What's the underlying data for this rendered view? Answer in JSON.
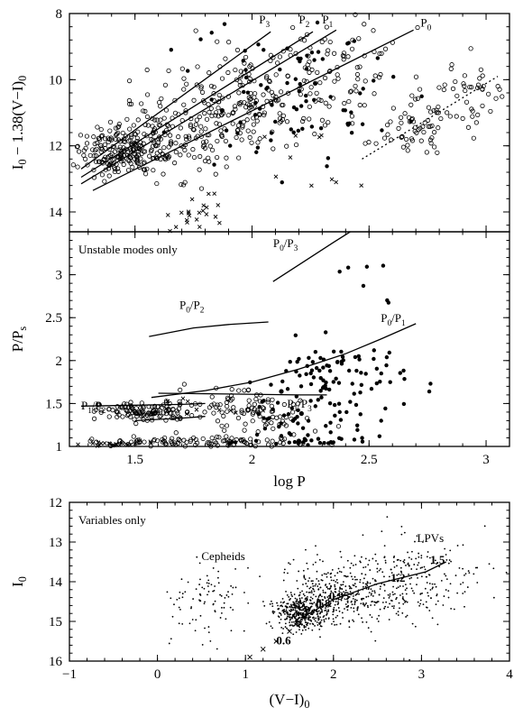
{
  "chart_data": [
    {
      "type": "scatter",
      "panel": "top",
      "xlabel": "",
      "ylabel": "I0 − 1.38(V−I)0",
      "ylabel_parts": {
        "main": "I",
        "sub1": "0",
        "mid": " − 1.38(V−I)",
        "sub2": "0"
      },
      "xlim": [
        1.22,
        3.1
      ],
      "ylim": [
        8,
        14.6
      ],
      "y_inverted": true,
      "yticks": [
        8,
        10,
        12,
        14
      ],
      "ytick_labels": [
        "8",
        "10",
        "12",
        "14"
      ],
      "xticks": [
        1.5,
        2,
        2.5,
        3
      ],
      "labels": [
        {
          "text": "P3",
          "main": "P",
          "sub": "3",
          "x": 2.03,
          "y": 8.3
        },
        {
          "text": "P2",
          "main": "P",
          "sub": "2",
          "x": 2.2,
          "y": 8.3
        },
        {
          "text": "P1",
          "main": "P",
          "sub": "1",
          "x": 2.3,
          "y": 8.3
        },
        {
          "text": "P0",
          "main": "P",
          "sub": "0",
          "x": 2.72,
          "y": 8.4
        }
      ],
      "series": [
        {
          "style": "line",
          "points": [
            [
              1.27,
              12.7
            ],
            [
              2.08,
              8.55
            ]
          ]
        },
        {
          "style": "line",
          "points": [
            [
              1.27,
              12.95
            ],
            [
              2.26,
              8.55
            ]
          ]
        },
        {
          "style": "line",
          "points": [
            [
              1.27,
              13.15
            ],
            [
              2.36,
              8.5
            ]
          ]
        },
        {
          "style": "line",
          "points": [
            [
              1.32,
              13.35
            ],
            [
              2.69,
              8.5
            ]
          ]
        },
        {
          "style": "dotted",
          "points": [
            [
              2.47,
              12.4
            ],
            [
              3.05,
              9.9
            ]
          ]
        },
        {
          "style": "open-circles",
          "clusters": [
            {
              "cx": 1.42,
              "cy": 12.2,
              "sx": 0.08,
              "sy": 0.35,
              "n": 150
            },
            {
              "cx": 1.6,
              "cy": 11.9,
              "sx": 0.12,
              "sy": 0.55,
              "n": 140
            },
            {
              "cx": 1.85,
              "cy": 11.0,
              "sx": 0.15,
              "sy": 0.7,
              "n": 120
            },
            {
              "cx": 2.1,
              "cy": 10.3,
              "sx": 0.15,
              "sy": 0.7,
              "n": 100
            },
            {
              "cx": 2.35,
              "cy": 9.6,
              "sx": 0.15,
              "sy": 0.7,
              "n": 70
            },
            {
              "cx": 2.72,
              "cy": 11.3,
              "sx": 0.14,
              "sy": 0.55,
              "n": 75
            },
            {
              "cx": 2.95,
              "cy": 10.2,
              "sx": 0.08,
              "sy": 0.4,
              "n": 30
            }
          ]
        },
        {
          "style": "filled",
          "clusters": [
            {
              "cx": 2.2,
              "cy": 10.4,
              "sx": 0.22,
              "sy": 1.1,
              "n": 60
            },
            {
              "cx": 2.0,
              "cy": 11.0,
              "sx": 0.2,
              "sy": 0.9,
              "n": 25
            }
          ]
        },
        {
          "style": "crosses",
          "clusters": [
            {
              "cx": 1.75,
              "cy": 14.0,
              "sx": 0.06,
              "sy": 0.3,
              "n": 22
            },
            {
              "cx": 2.2,
              "cy": 12.6,
              "sx": 0.12,
              "sy": 0.6,
              "n": 10
            }
          ]
        }
      ]
    },
    {
      "type": "scatter",
      "panel": "middle",
      "xlabel": "log P",
      "ylabel": "P/Ps",
      "ylabel_parts": {
        "main": "P/P",
        "sub": "s"
      },
      "xlim": [
        1.22,
        3.1
      ],
      "ylim": [
        1,
        3.5
      ],
      "xticks": [
        1.5,
        2,
        2.5,
        3
      ],
      "xtick_labels": [
        "1.5",
        "2",
        "2.5",
        "3"
      ],
      "yticks": [
        1,
        1.5,
        2,
        2.5,
        3
      ],
      "ytick_labels": [
        "1",
        "1.5",
        "2",
        "2.5",
        "3"
      ],
      "annotation": "Unstable modes only",
      "labels": [
        {
          "text": "P0/P3",
          "main": "P",
          "sub": "0",
          "mid": "/P",
          "sub2": "3",
          "x": 2.09,
          "y": 3.32
        },
        {
          "text": "P0/P2",
          "main": "P",
          "sub": "0",
          "mid": "/P",
          "sub2": "2",
          "x": 1.69,
          "y": 2.6
        },
        {
          "text": "P0/P1",
          "main": "P",
          "sub": "0",
          "mid": "/P",
          "sub2": "1",
          "x": 2.55,
          "y": 2.45
        },
        {
          "text": "P1/P2",
          "main": "P",
          "sub": "1",
          "mid": "/P",
          "sub2": "2",
          "x": 1.27,
          "y": 1.43
        },
        {
          "text": "P1/P3",
          "main": "P",
          "sub": "1",
          "mid": "/P",
          "sub2": "3",
          "x": 2.15,
          "y": 1.45
        }
      ],
      "series": [
        {
          "name": "P0/P3",
          "style": "line",
          "points": [
            [
              2.09,
              2.92
            ],
            [
              2.22,
              3.15
            ],
            [
              2.35,
              3.38
            ],
            [
              2.42,
              3.5
            ]
          ]
        },
        {
          "name": "P0/P2",
          "style": "line",
          "points": [
            [
              1.56,
              2.28
            ],
            [
              1.75,
              2.38
            ],
            [
              1.9,
              2.42
            ],
            [
              2.07,
              2.45
            ]
          ]
        },
        {
          "name": "P0/P1",
          "style": "line",
          "points": [
            [
              1.57,
              1.57
            ],
            [
              1.8,
              1.65
            ],
            [
              2.0,
              1.75
            ],
            [
              2.2,
              1.9
            ],
            [
              2.4,
              2.08
            ],
            [
              2.55,
              2.25
            ],
            [
              2.7,
              2.43
            ]
          ]
        },
        {
          "name": "P1/P2",
          "style": "line",
          "points": [
            [
              1.27,
              1.47
            ],
            [
              1.5,
              1.48
            ],
            [
              1.7,
              1.49
            ],
            [
              1.8,
              1.5
            ]
          ]
        },
        {
          "name": "P1/P3",
          "style": "line",
          "points": [
            [
              1.6,
              1.62
            ],
            [
              1.9,
              1.61
            ],
            [
              2.2,
              1.6
            ],
            [
              2.32,
              1.6
            ]
          ]
        },
        {
          "name": "lower band",
          "style": "line",
          "points": [
            [
              1.5,
              1.3
            ],
            [
              1.7,
              1.33
            ],
            [
              1.8,
              1.35
            ]
          ]
        },
        {
          "style": "open-circles",
          "clusters": [
            {
              "cx": 1.55,
              "cy": 1.4,
              "sx": 0.1,
              "sy": 0.06,
              "n": 120
            },
            {
              "cx": 1.6,
              "cy": 1.05,
              "sx": 0.15,
              "sy": 0.03,
              "n": 60
            },
            {
              "cx": 1.95,
              "cy": 1.5,
              "sx": 0.15,
              "sy": 0.1,
              "n": 60
            },
            {
              "cx": 2.1,
              "cy": 1.3,
              "sx": 0.15,
              "sy": 0.08,
              "n": 40
            },
            {
              "cx": 1.95,
              "cy": 1.05,
              "sx": 0.15,
              "sy": 0.03,
              "n": 45
            }
          ]
        },
        {
          "style": "filled",
          "clusters": [
            {
              "cx": 2.35,
              "cy": 1.8,
              "sx": 0.15,
              "sy": 0.22,
              "n": 90
            },
            {
              "cx": 2.2,
              "cy": 1.35,
              "sx": 0.15,
              "sy": 0.15,
              "n": 40
            },
            {
              "cx": 2.3,
              "cy": 1.05,
              "sx": 0.15,
              "sy": 0.03,
              "n": 30
            },
            {
              "cx": 2.5,
              "cy": 2.95,
              "sx": 0.08,
              "sy": 0.2,
              "n": 8
            }
          ]
        },
        {
          "style": "crosses",
          "clusters": [
            {
              "cx": 1.4,
              "cy": 1.02,
              "sx": 0.1,
              "sy": 0.02,
              "n": 25
            },
            {
              "cx": 1.75,
              "cy": 1.45,
              "sx": 0.1,
              "sy": 0.08,
              "n": 10
            }
          ]
        }
      ]
    },
    {
      "type": "scatter",
      "panel": "bottom",
      "xlabel": "(V−I)0",
      "xlabel_parts": {
        "main": "(V−I)",
        "sub": "0"
      },
      "ylabel": "I0",
      "ylabel_parts": {
        "main": "I",
        "sub": "0"
      },
      "xlim": [
        -1,
        4
      ],
      "ylim": [
        12,
        16
      ],
      "y_inverted": true,
      "xticks": [
        -1,
        0,
        1,
        2,
        3,
        4
      ],
      "xtick_labels": [
        "−1",
        "0",
        "1",
        "2",
        "3",
        "4"
      ],
      "yticks": [
        12,
        13,
        14,
        15,
        16
      ],
      "ytick_labels": [
        "12",
        "13",
        "14",
        "15",
        "16"
      ],
      "annotation": "Variables only",
      "labels": [
        {
          "text": "Cepheids",
          "x": 0.5,
          "y": 13.45
        },
        {
          "text": "LPVs",
          "x": 2.95,
          "y": 13.0
        },
        {
          "text": "1.5",
          "x": 3.1,
          "y": 13.55
        },
        {
          "text": "1.2",
          "x": 2.65,
          "y": 14.0
        },
        {
          "text": "0.95",
          "x": 1.95,
          "y": 14.45
        },
        {
          "text": "0.8",
          "x": 1.8,
          "y": 14.65
        },
        {
          "text": "0.6",
          "x": 1.35,
          "y": 15.58
        }
      ],
      "series": [
        {
          "name": "model sequence",
          "style": "line",
          "points": [
            [
              1.65,
              14.9
            ],
            [
              2.0,
              14.45
            ],
            [
              2.5,
              14.05
            ],
            [
              3.05,
              13.75
            ],
            [
              3.28,
              13.5
            ]
          ]
        },
        {
          "style": "crosses-line",
          "points": [
            [
              1.05,
              15.9
            ],
            [
              1.2,
              15.7
            ],
            [
              1.35,
              15.5
            ],
            [
              1.5,
              15.25
            ],
            [
              1.62,
              15.05
            ]
          ]
        },
        {
          "style": "dots",
          "clusters": [
            {
              "cx": 1.6,
              "cy": 14.8,
              "sx": 0.12,
              "sy": 0.2,
              "n": 350
            },
            {
              "cx": 2.0,
              "cy": 14.4,
              "sx": 0.3,
              "sy": 0.4,
              "n": 350
            },
            {
              "cx": 2.7,
              "cy": 14.0,
              "sx": 0.45,
              "sy": 0.55,
              "n": 300
            },
            {
              "cx": 0.55,
              "cy": 14.5,
              "sx": 0.2,
              "sy": 0.5,
              "n": 90
            }
          ]
        }
      ]
    }
  ]
}
